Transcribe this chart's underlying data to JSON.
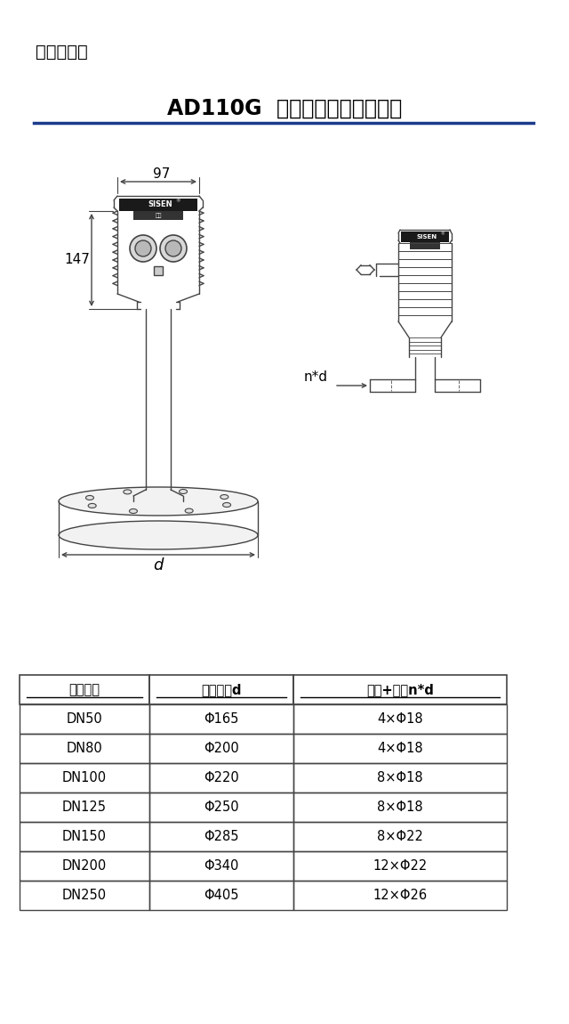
{
  "title_small": "产品尺寸图",
  "title_main": "AD110G  卫生平面型雷达物位计",
  "title_underline_color": "#1a3a8c",
  "background_color": "#ffffff",
  "table_headers": [
    "法兰规格",
    "法兰外径d",
    "孔数+孔径n*d"
  ],
  "table_rows": [
    [
      "DN50",
      "Φ165",
      "4×Φ18"
    ],
    [
      "DN80",
      "Φ200",
      "4×Φ18"
    ],
    [
      "DN100",
      "Φ220",
      "8×Φ18"
    ],
    [
      "DN125",
      "Φ250",
      "8×Φ18"
    ],
    [
      "DN150",
      "Φ285",
      "8×Φ22"
    ],
    [
      "DN200",
      "Φ340",
      "12×Φ22"
    ],
    [
      "DN250",
      "Φ405",
      "12×Φ26"
    ]
  ],
  "dim_97": "97",
  "dim_147": "147",
  "dim_d": "d",
  "dim_nd": "n*d",
  "line_color": "#444444",
  "dim_color": "#222222"
}
